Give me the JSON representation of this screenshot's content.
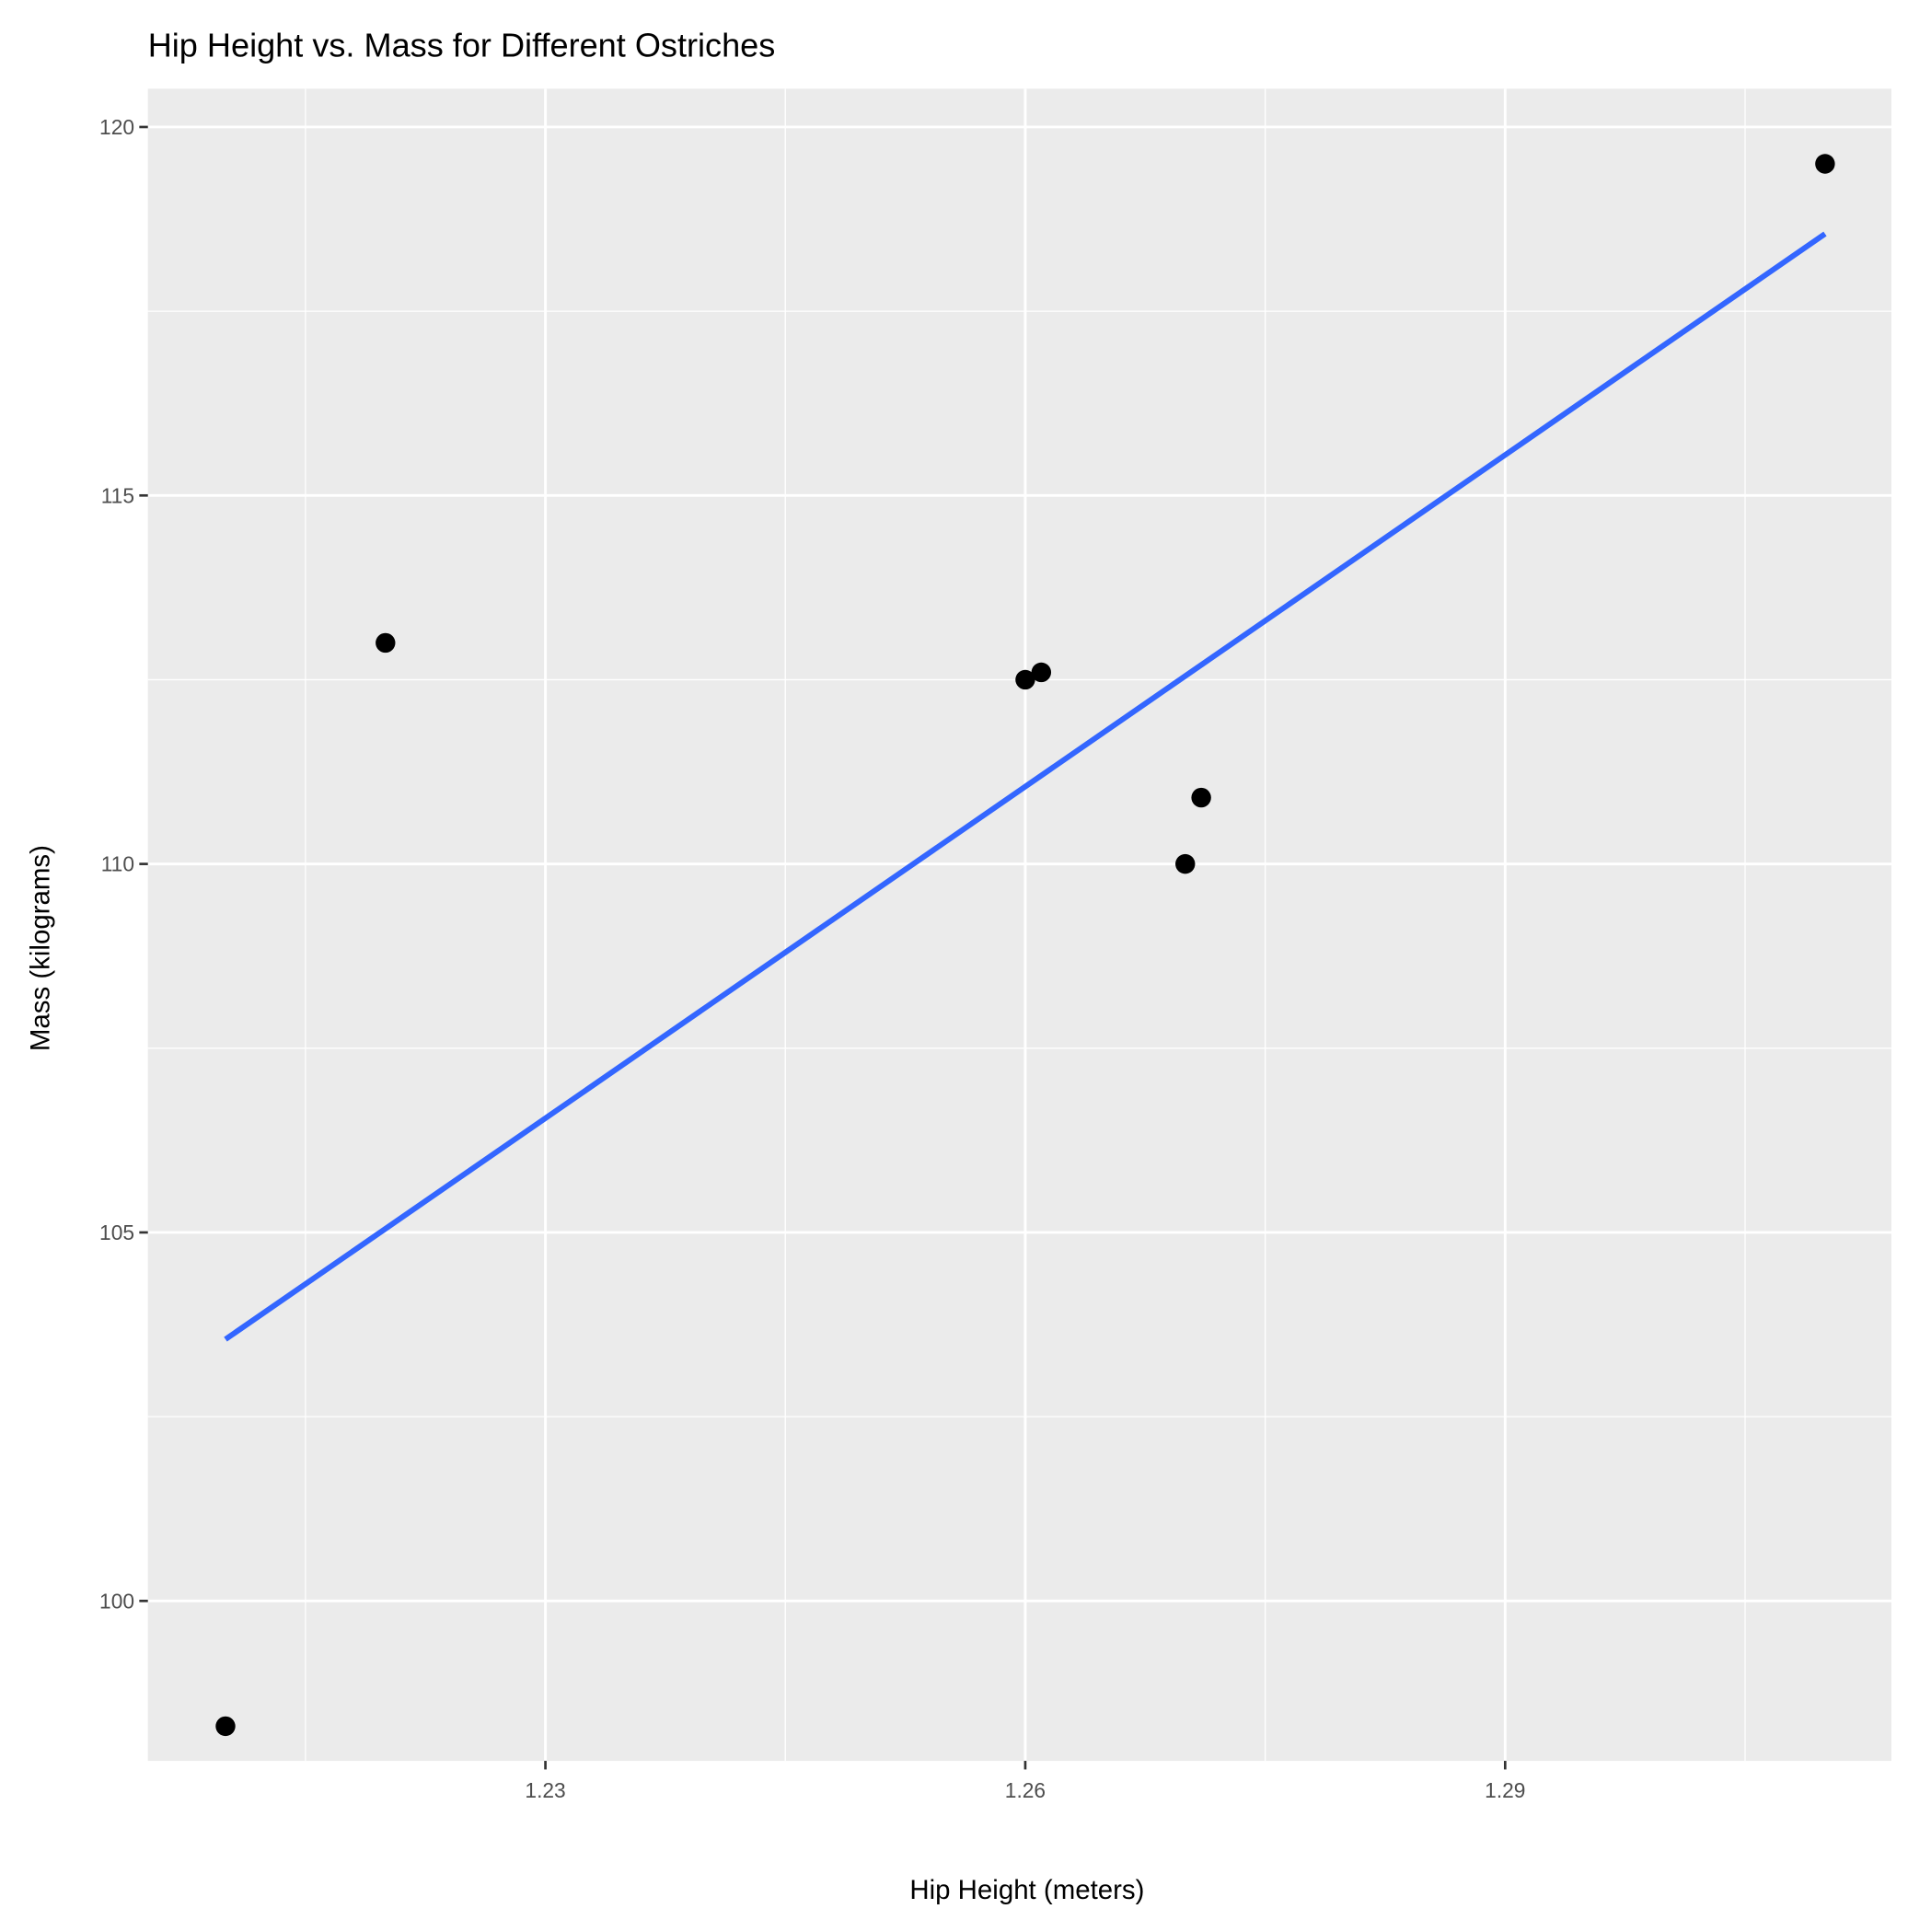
{
  "chart_data": {
    "type": "scatter",
    "title": "Hip Height vs. Mass for Different Ostriches",
    "x_label": "Hip Height (meters)",
    "y_label": "Mass (kilograms)",
    "x": [
      1.21,
      1.22,
      1.26,
      1.261,
      1.27,
      1.271,
      1.31
    ],
    "y": [
      98.3,
      113,
      112.5,
      112.6,
      110,
      110.9,
      119.5
    ],
    "color": "#000000",
    "trend": {
      "x": [
        1.21,
        1.31
      ],
      "y": [
        103.55,
        118.55
      ],
      "color": "#3366ff"
    },
    "xlim": [
      1.20515,
      1.31415
    ],
    "ylim": [
      97.83,
      120.52
    ],
    "xticks": [
      1.23,
      1.26,
      1.29
    ],
    "yticks": [
      100,
      105,
      110,
      115,
      120
    ],
    "xminor": [
      1.215,
      1.245,
      1.275,
      1.305
    ],
    "yminor": [
      97.5,
      102.5,
      107.5,
      112.5,
      117.5
    ],
    "grid": true
  }
}
